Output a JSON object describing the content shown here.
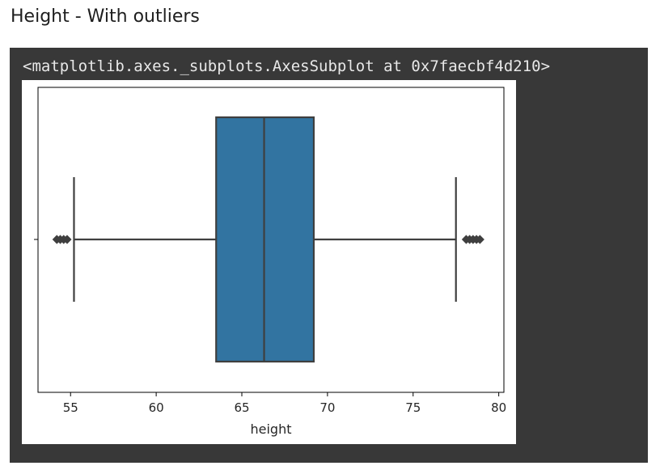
{
  "page": {
    "title": "Height - With outliers"
  },
  "output": {
    "repr": "<matplotlib.axes._subplots.AxesSubplot at 0x7faecbf4d210>"
  },
  "chart_data": {
    "type": "boxplot",
    "orientation": "horizontal",
    "title": "",
    "xlabel": "height",
    "ylabel": "",
    "xlim": [
      53.1,
      80.3
    ],
    "x_ticks": [
      55,
      60,
      65,
      70,
      75,
      80
    ],
    "x_tick_labels": [
      "55",
      "60",
      "65",
      "70",
      "75",
      "80"
    ],
    "grid": false,
    "box": {
      "q1": 63.5,
      "median": 66.3,
      "q3": 69.2,
      "whisker_low": 55.2,
      "whisker_high": 77.5,
      "color": "#3274a1",
      "edge_color": "#3f3f3f"
    },
    "outliers": [
      54.2,
      54.4,
      54.6,
      54.8,
      78.1,
      78.3,
      78.5,
      78.7,
      78.9
    ]
  }
}
